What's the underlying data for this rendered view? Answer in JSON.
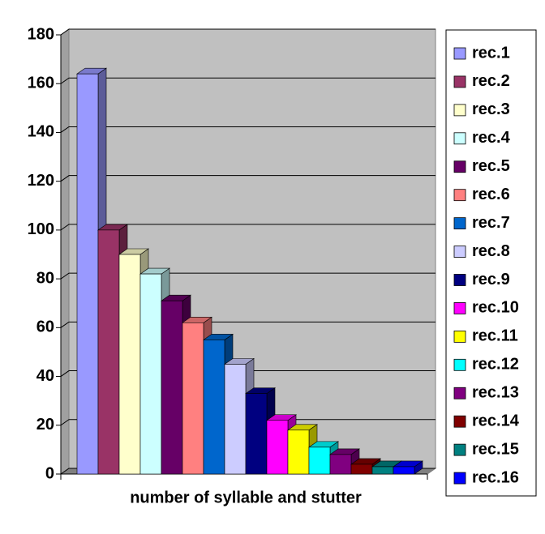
{
  "chart_data": {
    "type": "bar3d",
    "x_label": "number of syllable and stutter",
    "ylim": [
      0,
      180
    ],
    "yticks": [
      0,
      20,
      40,
      60,
      80,
      100,
      120,
      140,
      160,
      180
    ],
    "grid": true,
    "legend_position": "right",
    "series": [
      {
        "name": "rec.1",
        "color": "#9999ff",
        "values": [
          164
        ]
      },
      {
        "name": "rec.2",
        "color": "#993366",
        "values": [
          100
        ]
      },
      {
        "name": "rec.3",
        "color": "#ffffcc",
        "values": [
          90
        ]
      },
      {
        "name": "rec.4",
        "color": "#ccffff",
        "values": [
          82
        ]
      },
      {
        "name": "rec.5",
        "color": "#660066",
        "values": [
          71
        ]
      },
      {
        "name": "rec.6",
        "color": "#ff8080",
        "values": [
          62
        ]
      },
      {
        "name": "rec.7",
        "color": "#0066cc",
        "values": [
          55
        ]
      },
      {
        "name": "rec.8",
        "color": "#ccccff",
        "values": [
          45
        ]
      },
      {
        "name": "rec.9",
        "color": "#000080",
        "values": [
          33
        ]
      },
      {
        "name": "rec.10",
        "color": "#ff00ff",
        "values": [
          22
        ]
      },
      {
        "name": "rec.11",
        "color": "#ffff00",
        "values": [
          18
        ]
      },
      {
        "name": "rec.12",
        "color": "#00ffff",
        "values": [
          11
        ]
      },
      {
        "name": "rec.13",
        "color": "#800080",
        "values": [
          8
        ]
      },
      {
        "name": "rec.14",
        "color": "#800000",
        "values": [
          4
        ]
      },
      {
        "name": "rec.15",
        "color": "#008080",
        "values": [
          3
        ]
      },
      {
        "name": "rec.16",
        "color": "#0000ff",
        "values": [
          3
        ]
      }
    ]
  }
}
